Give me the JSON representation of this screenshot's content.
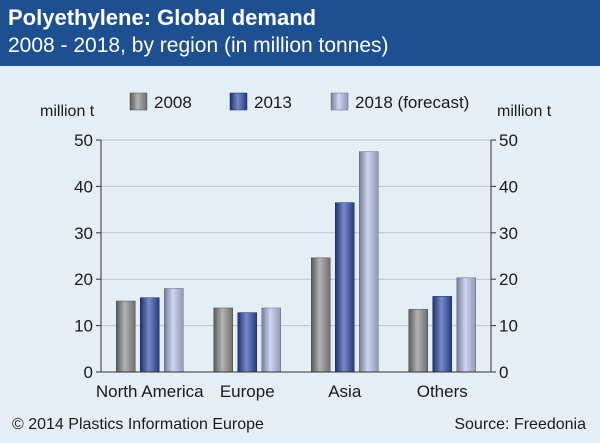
{
  "header": {
    "title": "Polyethylene: Global demand",
    "subtitle": "2008 - 2018, by region (in million tonnes)"
  },
  "footer": {
    "copyright": "© 2014 Plastics Information Europe",
    "source": "Source: Freedonia"
  },
  "colors": {
    "header_bg": "#1d4f91",
    "background": "#e6eef5",
    "series_2008": "#8a8a8a",
    "series_2013": "#2f4aa8",
    "series_2018": "#b4bee6"
  },
  "chart_data": {
    "type": "bar",
    "categories": [
      "North America",
      "Europe",
      "Asia",
      "Others"
    ],
    "series": [
      {
        "name": "2008",
        "values": [
          15.3,
          13.8,
          24.6,
          13.5
        ],
        "color": "#8a8a8a"
      },
      {
        "name": "2013",
        "values": [
          16.0,
          12.8,
          36.5,
          16.3
        ],
        "color": "#2f4aa8"
      },
      {
        "name": "2018 (forecast)",
        "values": [
          18.0,
          13.8,
          47.5,
          20.3
        ],
        "color": "#b4bee6"
      }
    ],
    "ylabel_left": "million t",
    "ylabel_right": "million t",
    "ylim": [
      0,
      50
    ],
    "yticks": [
      0,
      10,
      20,
      30,
      40,
      50
    ],
    "grid": true,
    "legend_position": "top"
  }
}
